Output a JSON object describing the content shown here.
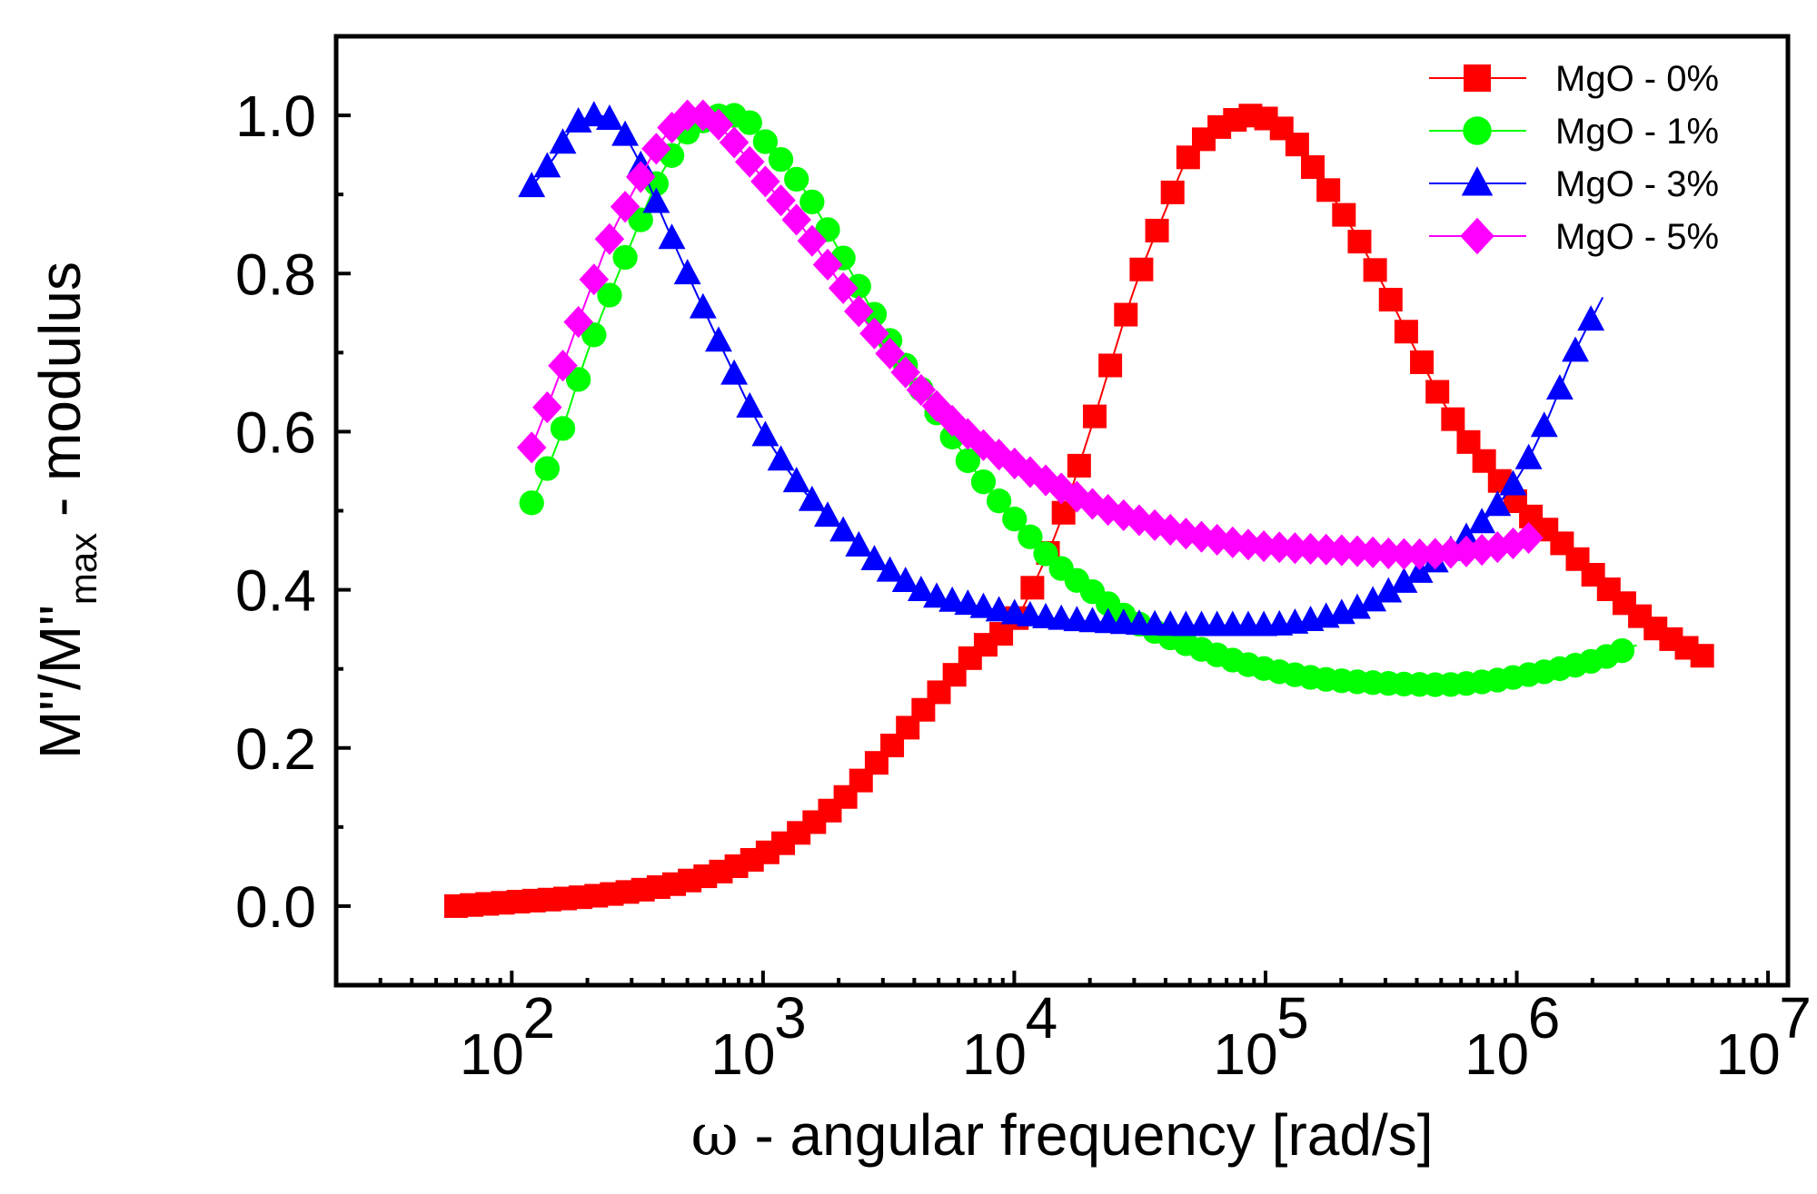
{
  "chart_data": {
    "type": "scatter",
    "x_scale": "log",
    "xlim": [
      20,
      12000000
    ],
    "ylim": [
      -0.1,
      1.1
    ],
    "y_ticks": [
      "0.0",
      "0.2",
      "0.4",
      "0.6",
      "0.8",
      "1.0"
    ],
    "x_ticks": [
      {
        "base": "10",
        "exp": "2"
      },
      {
        "base": "10",
        "exp": "3"
      },
      {
        "base": "10",
        "exp": "4"
      },
      {
        "base": "10",
        "exp": "5"
      },
      {
        "base": "10",
        "exp": "6"
      },
      {
        "base": "10",
        "exp": "7"
      }
    ],
    "xlabel": {
      "symbol": "ω",
      "text": " - angular frequency   [rad/s]"
    },
    "ylabel": {
      "main": "M\"/M\"",
      "sub": "max",
      "rest": " - modulus"
    },
    "legend_position": "top-right",
    "series": [
      {
        "name": "MgO - 0%",
        "color": "#ff0000",
        "marker": "square",
        "x": [
          60,
          100,
          200,
          400,
          700,
          1000,
          1500,
          2000,
          3000,
          5000,
          7000,
          10000,
          12500,
          15000,
          20000,
          25000,
          30000,
          40000,
          50000,
          70000,
          90000,
          120000,
          150000,
          200000,
          300000,
          400000,
          600000,
          800000,
          1000000,
          1500000,
          2000000,
          3000000,
          4000000,
          6000000
        ],
        "y": [
          0.0,
          0.005,
          0.012,
          0.025,
          0.045,
          0.065,
          0.1,
          0.13,
          0.19,
          0.27,
          0.32,
          0.36,
          0.42,
          0.48,
          0.6,
          0.7,
          0.78,
          0.88,
          0.95,
          0.99,
          1.0,
          0.98,
          0.94,
          0.88,
          0.78,
          0.7,
          0.6,
          0.55,
          0.51,
          0.46,
          0.42,
          0.37,
          0.34,
          0.31
        ]
      },
      {
        "name": "MgO - 1%",
        "color": "#00ff00",
        "marker": "circle",
        "x": [
          120,
          150,
          200,
          300,
          400,
          550,
          700,
          800,
          1000,
          1500,
          2000,
          3000,
          5000,
          7000,
          10000,
          15000,
          20000,
          30000,
          50000,
          100000,
          200000,
          500000,
          800000,
          1000000,
          2000000,
          3000000
        ],
        "y": [
          0.51,
          0.58,
          0.7,
          0.84,
          0.93,
          0.99,
          1.0,
          1.0,
          0.97,
          0.9,
          0.83,
          0.73,
          0.62,
          0.55,
          0.49,
          0.43,
          0.4,
          0.36,
          0.33,
          0.3,
          0.285,
          0.28,
          0.285,
          0.29,
          0.31,
          0.33
        ]
      },
      {
        "name": "MgO - 3%",
        "color": "#0000ff",
        "marker": "triangle",
        "x": [
          120,
          150,
          180,
          220,
          260,
          300,
          400,
          500,
          700,
          1000,
          1500,
          2000,
          3000,
          5000,
          7000,
          10000,
          20000,
          50000,
          100000,
          200000,
          400000,
          700000,
          1000000,
          1300000,
          1700000,
          2200000
        ],
        "y": [
          0.91,
          0.95,
          0.99,
          1.0,
          0.99,
          0.96,
          0.87,
          0.8,
          0.7,
          0.6,
          0.52,
          0.48,
          0.43,
          0.39,
          0.38,
          0.37,
          0.36,
          0.355,
          0.355,
          0.37,
          0.42,
          0.48,
          0.54,
          0.61,
          0.7,
          0.77
        ]
      },
      {
        "name": "MgO - 5%",
        "color": "#ff00ff",
        "marker": "diamond",
        "x": [
          120,
          150,
          200,
          250,
          300,
          400,
          500,
          600,
          700,
          1000,
          1500,
          2000,
          3000,
          5000,
          7000,
          10000,
          15000,
          20000,
          30000,
          50000,
          100000,
          200000,
          400000,
          700000,
          1000000,
          1200000
        ],
        "y": [
          0.58,
          0.66,
          0.77,
          0.85,
          0.9,
          0.97,
          1.0,
          1.0,
          0.98,
          0.92,
          0.85,
          0.79,
          0.71,
          0.63,
          0.59,
          0.56,
          0.53,
          0.51,
          0.49,
          0.47,
          0.455,
          0.45,
          0.445,
          0.45,
          0.46,
          0.47
        ]
      }
    ]
  }
}
